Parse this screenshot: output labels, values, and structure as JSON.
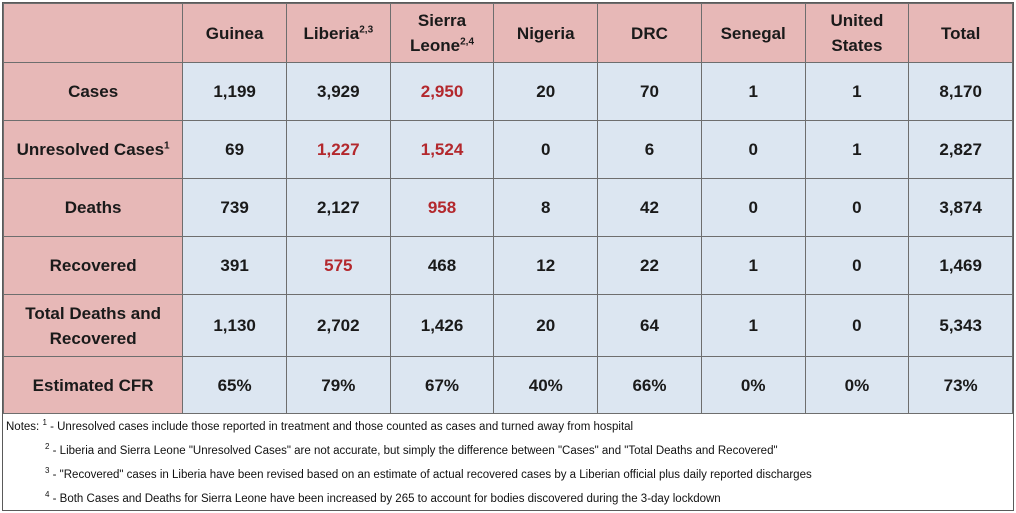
{
  "table": {
    "corner": "",
    "headers": [
      {
        "text": "Guinea",
        "sup": ""
      },
      {
        "text": "Liberia",
        "sup": "2,3"
      },
      {
        "text": "Sierra Leone",
        "sup": "2,4"
      },
      {
        "text": "Nigeria",
        "sup": ""
      },
      {
        "text": "DRC",
        "sup": ""
      },
      {
        "text": "Senegal",
        "sup": ""
      },
      {
        "text": "United States",
        "sup": ""
      },
      {
        "text": "Total",
        "sup": ""
      }
    ],
    "rows": [
      {
        "label": "Cases",
        "sup": "",
        "values": [
          "1,199",
          "3,929",
          "2,950",
          "20",
          "70",
          "1",
          "1",
          "8,170"
        ]
      },
      {
        "label": "Unresolved Cases",
        "sup": "1",
        "values": [
          "69",
          "1,227",
          "1,524",
          "0",
          "6",
          "0",
          "1",
          "2,827"
        ]
      },
      {
        "label": "Deaths",
        "sup": "",
        "values": [
          "739",
          "2,127",
          "958",
          "8",
          "42",
          "0",
          "0",
          "3,874"
        ]
      },
      {
        "label": "Recovered",
        "sup": "",
        "values": [
          "391",
          "575",
          "468",
          "12",
          "22",
          "1",
          "0",
          "1,469"
        ]
      },
      {
        "label": "Total Deaths and Recovered",
        "sup": "",
        "values": [
          "1,130",
          "2,702",
          "1,426",
          "20",
          "64",
          "1",
          "0",
          "5,343"
        ]
      },
      {
        "label": "Estimated CFR",
        "sup": "",
        "values": [
          "65%",
          "79%",
          "67%",
          "40%",
          "66%",
          "0%",
          "0%",
          "73%"
        ]
      }
    ],
    "highlight_color": "#b3282d",
    "header_bg": "#e7b8b7",
    "value_bg": "#dce6f1"
  },
  "notes": {
    "prefix": "Notes:",
    "items": [
      {
        "sup": "1",
        "text": " - Unresolved cases include those reported in treatment and those counted as cases and turned away from hospital"
      },
      {
        "sup": "2",
        "text": " - Liberia and Sierra Leone \"Unresolved Cases\" are not accurate, but simply the difference between \"Cases\" and \"Total Deaths and Recovered\""
      },
      {
        "sup": "3",
        "text": " - \"Recovered\" cases in Liberia have been revised based on an estimate of actual recovered cases by a Liberian official plus daily reported discharges"
      },
      {
        "sup": "4",
        "text": " - Both Cases and Deaths for Sierra Leone have been increased by 265 to account for bodies discovered during the 3-day lockdown"
      }
    ]
  }
}
